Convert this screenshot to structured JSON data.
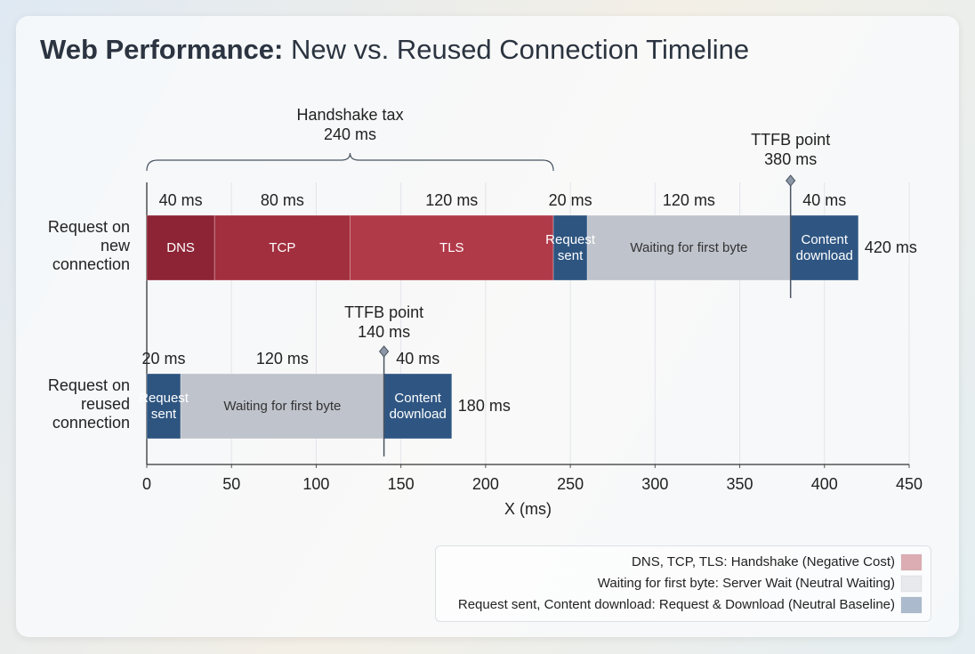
{
  "chart_data": {
    "type": "timeline",
    "title": {
      "lead": "Web Performance:",
      "text": "New vs. Reused Connection Timeline"
    },
    "rows": [
      {
        "category": "Request on new connection",
        "labels": [
          "DNS",
          "TCP",
          "TLS",
          "Request sent",
          "Waiting for first byte",
          "Content download"
        ],
        "values": [
          40,
          80,
          120,
          20,
          120,
          40
        ],
        "value_labels": [
          "40 ms",
          "80 ms",
          "120 ms",
          "20 ms",
          "120 ms",
          "40 ms"
        ],
        "colors": [
          "#8c2436",
          "#a12f3e",
          "#b13a49",
          "#2e5580",
          "#bfc3cc",
          "#2f5683"
        ],
        "total": 420,
        "total_label": "420 ms",
        "marker": {
          "label": "TTFB point",
          "value": 380,
          "value_label": "380 ms"
        }
      },
      {
        "category": "Request on reused connection",
        "labels": [
          "Request sent",
          "Waiting for first byte",
          "Content download"
        ],
        "values": [
          20,
          120,
          40
        ],
        "value_labels": [
          "20 ms",
          "120 ms",
          "40 ms"
        ],
        "colors": [
          "#2e5580",
          "#bfc3cc",
          "#2f5683"
        ],
        "total": 180,
        "total_label": "180 ms",
        "marker": {
          "label": "TTFB point",
          "value": 140,
          "value_label": "140 ms"
        }
      }
    ],
    "annotation": {
      "label": "Handshake tax",
      "value": 240,
      "value_label": "240 ms"
    },
    "xlabel": "X (ms)",
    "xlim": [
      0,
      450
    ],
    "xticks": [
      0,
      50,
      100,
      150,
      200,
      250,
      300,
      350,
      400,
      450
    ],
    "grid": true,
    "legend": [
      {
        "name": "DNS, TCP, TLS: Handshake (Negative Cost)",
        "color": "#a8323f"
      },
      {
        "name": "Waiting for first byte: Server Wait (Neutral Waiting)",
        "color": "#c4c7cf"
      },
      {
        "name": "Request sent, Content download: Request & Download (Neutral Baseline)",
        "color": "#2f5583"
      }
    ]
  }
}
